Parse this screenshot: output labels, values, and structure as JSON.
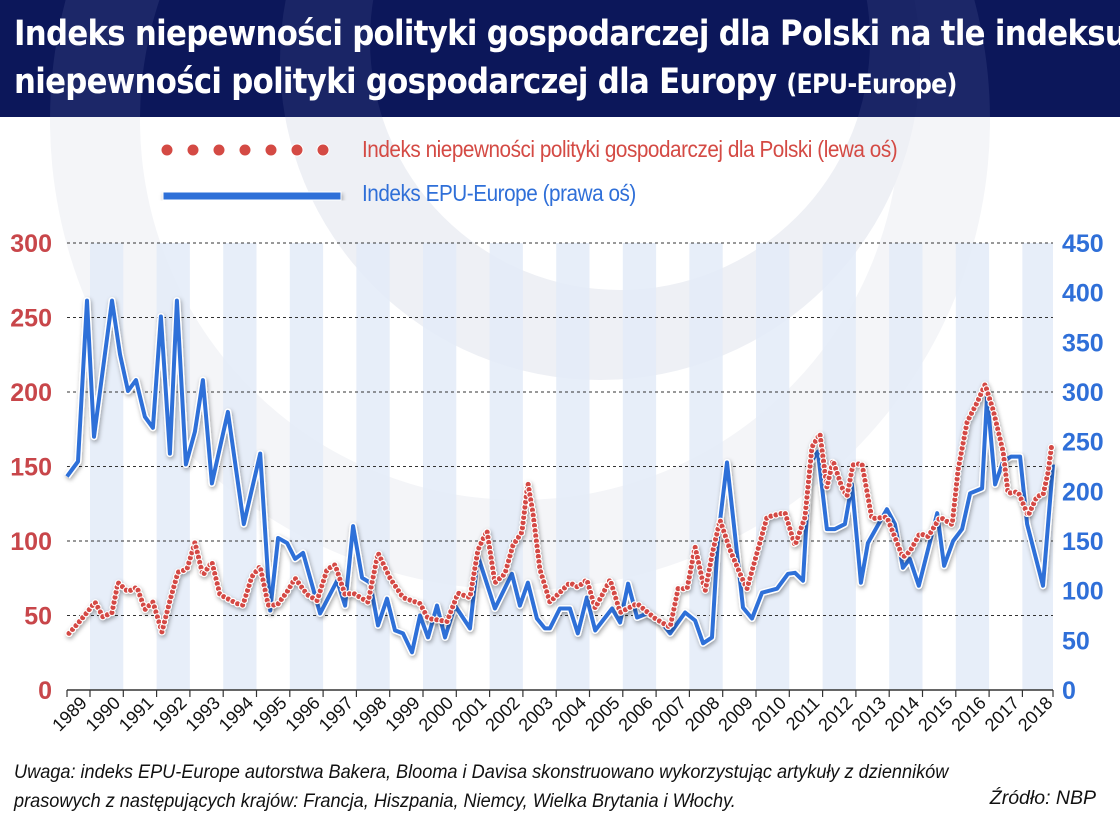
{
  "title": {
    "line1": "Indeks niepewności polityki gospodarczej dla Polski na tle indeksu",
    "line2": "niepewności polityki gospodarczej dla Europy",
    "line2_suffix": "(EPU-Europe)"
  },
  "note": {
    "line1": "Uwaga: indeks EPU-Europe autorstwa Bakera, Blooma i Davisa skonstruowano wykorzystując artykuły z dzienników",
    "line2": "prasowych z następujących krajów: Francja, Hiszpania, Niemcy, Wielka Brytania i Włochy.",
    "source": "Źródło: NBP"
  },
  "colors": {
    "title_band": "#0c175a",
    "poland": "#d44a44",
    "europe": "#2f6fd8",
    "band": "#e3ebf8"
  },
  "chart_data": {
    "type": "line",
    "grid": true,
    "legend_placement": "top-center",
    "x_tick_labels": [
      "1989",
      "1990",
      "1991",
      "1992",
      "1993",
      "1994",
      "1995",
      "1996",
      "1997",
      "1998",
      "1999",
      "2000",
      "2001",
      "2002",
      "2003",
      "2004",
      "2005",
      "2006",
      "2007",
      "2008",
      "2009",
      "2010",
      "2011",
      "2012",
      "2013",
      "2014",
      "2015",
      "2016",
      "2017",
      "2018"
    ],
    "xlim": [
      1989.3,
      2018.95
    ],
    "y_left": {
      "lim": [
        0,
        300
      ],
      "ticks": [
        "0",
        "50",
        "100",
        "150",
        "200",
        "250",
        "300"
      ]
    },
    "y_right": {
      "lim": [
        0,
        450
      ],
      "ticks": [
        "0",
        "50",
        "100",
        "150",
        "200",
        "250",
        "300",
        "350",
        "400",
        "450"
      ]
    },
    "series": [
      {
        "name": "Indeks niepewności polityki gospodarczej dla Polski (lewa oś)",
        "axis": "left",
        "style": "dotted",
        "x": [
          1989.37,
          1989.61,
          1989.91,
          1990.15,
          1990.39,
          1990.66,
          1990.84,
          1991.14,
          1991.41,
          1991.65,
          1991.89,
          1992.16,
          1992.4,
          1992.64,
          1992.91,
          1993.15,
          1993.39,
          1993.66,
          1993.9,
          1994.41,
          1994.59,
          1994.86,
          1995.11,
          1995.35,
          1995.62,
          1995.92,
          1996.16,
          1996.52,
          1996.82,
          1997.12,
          1997.36,
          1997.66,
          1997.9,
          1998.35,
          1998.65,
          1999.01,
          1999.4,
          1999.91,
          2000.15,
          2000.72,
          2001.05,
          2001.41,
          2001.65,
          2001.92,
          2002.16,
          2002.46,
          2002.7,
          2002.97,
          2003.15,
          2003.3,
          2003.51,
          2003.81,
          2004.41,
          2004.65,
          2004.92,
          2005.17,
          2005.62,
          2005.92,
          2006.43,
          2006.97,
          2007.42,
          2007.66,
          2007.93,
          2008.17,
          2008.47,
          2008.71,
          2008.92,
          2009.22,
          2009.52,
          2009.73,
          2010.33,
          2010.87,
          2011.17,
          2011.47,
          2011.68,
          2011.92,
          2012.13,
          2012.31,
          2012.58,
          2012.73,
          2012.91,
          2013.18,
          2013.48,
          2013.93,
          2014.41,
          2014.62,
          2014.92,
          2015.17,
          2015.53,
          2015.89,
          2016.07,
          2016.34,
          2016.64,
          2016.88,
          2017.12,
          2017.42,
          2017.57,
          2017.87,
          2018.17,
          2018.44,
          2018.62,
          2018.77,
          2018.89
        ],
        "values": [
          38,
          44,
          52,
          59,
          49,
          52,
          72,
          66,
          69,
          54,
          59,
          39,
          60,
          79,
          81,
          99,
          77,
          86,
          64,
          58,
          57,
          76,
          83,
          57,
          57,
          66,
          75,
          64,
          60,
          81,
          84,
          64,
          65,
          59,
          92,
          75,
          62,
          58,
          48,
          46,
          65,
          62,
          94,
          107,
          72,
          78,
          97,
          106,
          139,
          119,
          81,
          59,
          72,
          69,
          74,
          55,
          74,
          52,
          58,
          48,
          42,
          68,
          68,
          96,
          66,
          94,
          114,
          94,
          78,
          68,
          116,
          119,
          97,
          116,
          163,
          172,
          136,
          154,
          136,
          130,
          151,
          152,
          115,
          116,
          89,
          93,
          105,
          103,
          116,
          111,
          148,
          180,
          193,
          205,
          188,
          160,
          132,
          133,
          117,
          130,
          131,
          146,
          166
        ]
      },
      {
        "name": "Indeks EPU-Europe (prawa oś)",
        "axis": "right",
        "style": "solid",
        "x": [
          1989.31,
          1989.64,
          1989.91,
          1990.12,
          1990.66,
          1990.9,
          1991.14,
          1991.38,
          1991.65,
          1991.89,
          1992.13,
          1992.4,
          1992.61,
          1992.88,
          1993.15,
          1993.39,
          1993.66,
          1994.14,
          1994.62,
          1995.11,
          1995.41,
          1995.65,
          1995.92,
          1996.16,
          1996.4,
          1996.91,
          1997.42,
          1997.66,
          1997.9,
          1998.17,
          1998.41,
          1998.65,
          1998.92,
          1999.16,
          1999.4,
          1999.67,
          1999.91,
          2000.15,
          2000.42,
          2000.66,
          2000.96,
          2001.41,
          2001.65,
          2002.16,
          2002.67,
          2002.91,
          2003.15,
          2003.42,
          2003.66,
          2003.81,
          2004.11,
          2004.41,
          2004.65,
          2004.92,
          2005.17,
          2005.68,
          2005.92,
          2006.16,
          2006.43,
          2006.73,
          2007.12,
          2007.42,
          2007.87,
          2008.17,
          2008.41,
          2008.68,
          2008.86,
          2009.13,
          2009.61,
          2009.88,
          2010.18,
          2010.63,
          2010.96,
          2011.17,
          2011.41,
          2011.62,
          2011.86,
          2012.13,
          2012.37,
          2012.67,
          2012.88,
          2013.15,
          2013.36,
          2013.93,
          2014.17,
          2014.41,
          2014.62,
          2014.89,
          2015.44,
          2015.65,
          2015.92,
          2016.19,
          2016.43,
          2016.79,
          2016.94,
          2017.18,
          2017.42,
          2017.66,
          2017.93,
          2018.14,
          2018.62,
          2018.92
        ],
        "values": [
          215,
          230,
          392,
          255,
          392,
          338,
          301,
          312,
          275,
          264,
          376,
          238,
          392,
          227,
          260,
          312,
          208,
          280,
          167,
          238,
          80,
          153,
          148,
          132,
          138,
          77,
          110,
          85,
          165,
          113,
          108,
          65,
          92,
          60,
          57,
          38,
          75,
          53,
          85,
          53,
          85,
          62,
          135,
          82,
          117,
          85,
          108,
          72,
          62,
          62,
          82,
          82,
          57,
          93,
          60,
          82,
          68,
          107,
          73,
          77,
          70,
          57,
          78,
          70,
          47,
          53,
          153,
          229,
          83,
          72,
          98,
          102,
          117,
          118,
          110,
          228,
          240,
          162,
          162,
          167,
          207,
          108,
          148,
          182,
          167,
          123,
          132,
          105,
          178,
          125,
          150,
          162,
          198,
          203,
          297,
          207,
          230,
          235,
          235,
          167,
          105,
          227
        ]
      }
    ]
  }
}
